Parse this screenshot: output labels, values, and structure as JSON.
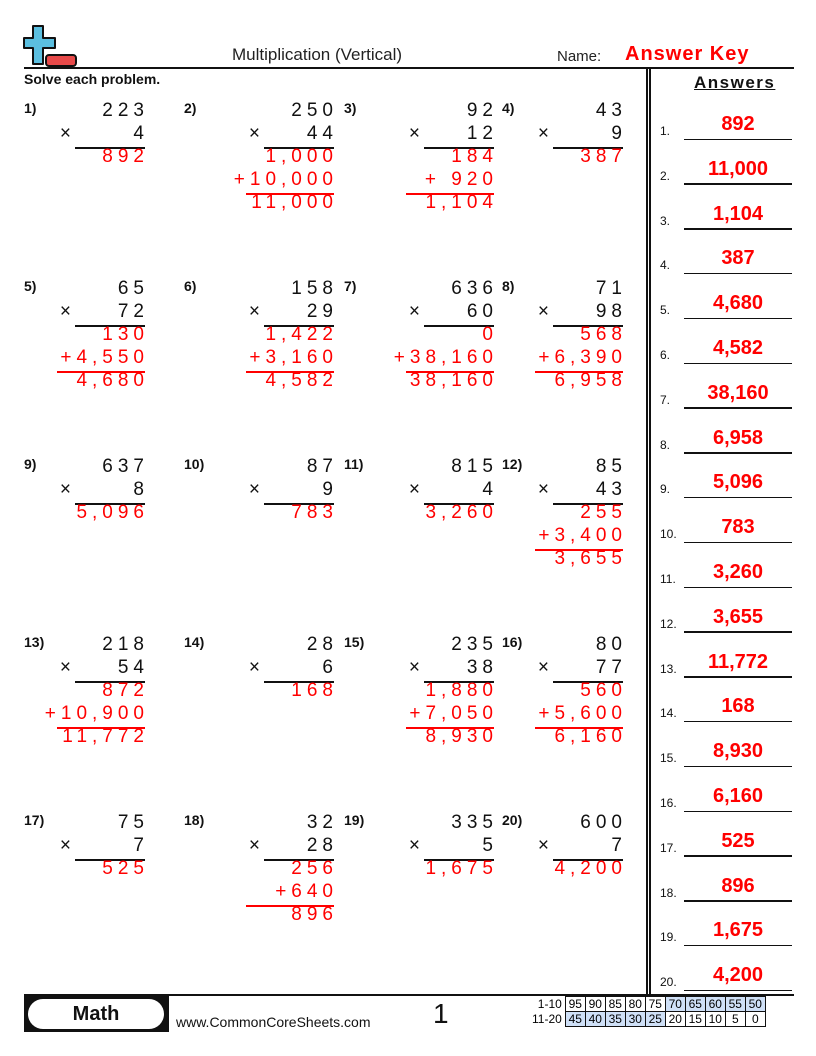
{
  "header": {
    "title": "Multiplication (Vertical)",
    "name_label": "Name:",
    "name_value": "Answer Key",
    "instructions": "Solve each problem."
  },
  "colors": {
    "answer": "#ff0000",
    "logo_plus": "#5bbfe0",
    "logo_minus": "#e84a4a",
    "score_highlight": "#cfe0f7"
  },
  "problems": [
    {
      "n": "1)",
      "top": "223",
      "mult": "4",
      "partials": [],
      "total": "892"
    },
    {
      "n": "2)",
      "top": "250",
      "mult": "44",
      "partials": [
        "1,000",
        "+10,000"
      ],
      "total": "11,000"
    },
    {
      "n": "3)",
      "top": "92",
      "mult": "12",
      "partials": [
        "184",
        "+ 920"
      ],
      "total": "1,104"
    },
    {
      "n": "4)",
      "top": "43",
      "mult": "9",
      "partials": [],
      "total": "387"
    },
    {
      "n": "5)",
      "top": "65",
      "mult": "72",
      "partials": [
        "130",
        "+4,550"
      ],
      "total": "4,680"
    },
    {
      "n": "6)",
      "top": "158",
      "mult": "29",
      "partials": [
        "1,422",
        "+3,160"
      ],
      "total": "4,582"
    },
    {
      "n": "7)",
      "top": "636",
      "mult": "60",
      "partials": [
        "0",
        "+38,160"
      ],
      "total": "38,160"
    },
    {
      "n": "8)",
      "top": "71",
      "mult": "98",
      "partials": [
        "568",
        "+6,390"
      ],
      "total": "6,958"
    },
    {
      "n": "9)",
      "top": "637",
      "mult": "8",
      "partials": [],
      "total": "5,096"
    },
    {
      "n": "10)",
      "top": "87",
      "mult": "9",
      "partials": [],
      "total": "783"
    },
    {
      "n": "11)",
      "top": "815",
      "mult": "4",
      "partials": [],
      "total": "3,260"
    },
    {
      "n": "12)",
      "top": "85",
      "mult": "43",
      "partials": [
        "255",
        "+3,400"
      ],
      "total": "3,655"
    },
    {
      "n": "13)",
      "top": "218",
      "mult": "54",
      "partials": [
        "872",
        "+10,900"
      ],
      "total": "11,772"
    },
    {
      "n": "14)",
      "top": "28",
      "mult": "6",
      "partials": [],
      "total": "168"
    },
    {
      "n": "15)",
      "top": "235",
      "mult": "38",
      "partials": [
        "1,880",
        "+7,050"
      ],
      "total": "8,930"
    },
    {
      "n": "16)",
      "top": "80",
      "mult": "77",
      "partials": [
        "560",
        "+5,600"
      ],
      "total": "6,160"
    },
    {
      "n": "17)",
      "top": "75",
      "mult": "7",
      "partials": [],
      "total": "525"
    },
    {
      "n": "18)",
      "top": "32",
      "mult": "28",
      "partials": [
        "256",
        "+640"
      ],
      "total": "896"
    },
    {
      "n": "19)",
      "top": "335",
      "mult": "5",
      "partials": [],
      "total": "1,675"
    },
    {
      "n": "20)",
      "top": "600",
      "mult": "7",
      "partials": [],
      "total": "4,200"
    }
  ],
  "times_symbol": "×",
  "answers": {
    "title": "Answers",
    "items": [
      {
        "n": "1.",
        "v": "892"
      },
      {
        "n": "2.",
        "v": "11,000"
      },
      {
        "n": "3.",
        "v": "1,104"
      },
      {
        "n": "4.",
        "v": "387"
      },
      {
        "n": "5.",
        "v": "4,680"
      },
      {
        "n": "6.",
        "v": "4,582"
      },
      {
        "n": "7.",
        "v": "38,160"
      },
      {
        "n": "8.",
        "v": "6,958"
      },
      {
        "n": "9.",
        "v": "5,096"
      },
      {
        "n": "10.",
        "v": "783"
      },
      {
        "n": "11.",
        "v": "3,260"
      },
      {
        "n": "12.",
        "v": "3,655"
      },
      {
        "n": "13.",
        "v": "11,772"
      },
      {
        "n": "14.",
        "v": "168"
      },
      {
        "n": "15.",
        "v": "8,930"
      },
      {
        "n": "16.",
        "v": "6,160"
      },
      {
        "n": "17.",
        "v": "525"
      },
      {
        "n": "18.",
        "v": "896"
      },
      {
        "n": "19.",
        "v": "1,675"
      },
      {
        "n": "20.",
        "v": "4,200"
      }
    ]
  },
  "footer": {
    "subject": "Math",
    "site": "www.CommonCoreSheets.com",
    "page": "1",
    "score_rows": [
      {
        "label": "1-10",
        "cells": [
          "95",
          "90",
          "85",
          "80",
          "75",
          "70",
          "65",
          "60",
          "55",
          "50"
        ],
        "highlight": [
          5,
          6,
          7,
          8,
          9
        ]
      },
      {
        "label": "11-20",
        "cells": [
          "45",
          "40",
          "35",
          "30",
          "25",
          "20",
          "15",
          "10",
          "5",
          "0"
        ],
        "highlight": [
          0,
          1,
          2,
          3,
          4
        ]
      }
    ]
  }
}
